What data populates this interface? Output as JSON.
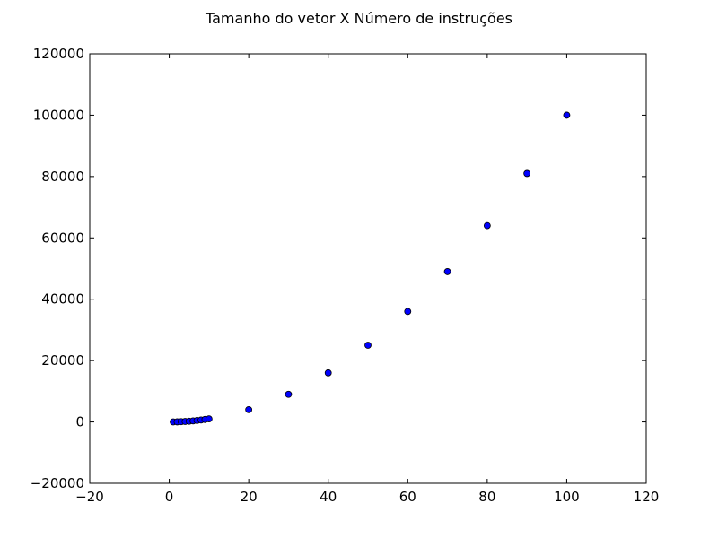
{
  "chart_data": {
    "type": "scatter",
    "title": "Tamanho do vetor X Número de instruções",
    "xlabel": "",
    "ylabel": "",
    "xlim": [
      -20,
      120
    ],
    "ylim": [
      -20000,
      120000
    ],
    "x_ticks": [
      -20,
      0,
      20,
      40,
      60,
      80,
      100,
      120
    ],
    "y_ticks": [
      -20000,
      0,
      20000,
      40000,
      60000,
      80000,
      100000,
      120000
    ],
    "x_tick_labels": [
      "−20",
      "0",
      "20",
      "40",
      "60",
      "80",
      "100",
      "120"
    ],
    "y_tick_labels": [
      "−20000",
      "0",
      "20000",
      "40000",
      "60000",
      "80000",
      "100000",
      "120000"
    ],
    "grid": false,
    "marker_color": "#0000ff",
    "series": [
      {
        "x": [
          1,
          2,
          3,
          4,
          5,
          6,
          7,
          8,
          9,
          10,
          20,
          30,
          40,
          50,
          60,
          70,
          80,
          90,
          100
        ],
        "y": [
          10,
          40,
          90,
          160,
          250,
          360,
          490,
          640,
          810,
          1000,
          4000,
          9000,
          16000,
          25000,
          36000,
          49000,
          64000,
          81000,
          100000
        ]
      }
    ]
  }
}
